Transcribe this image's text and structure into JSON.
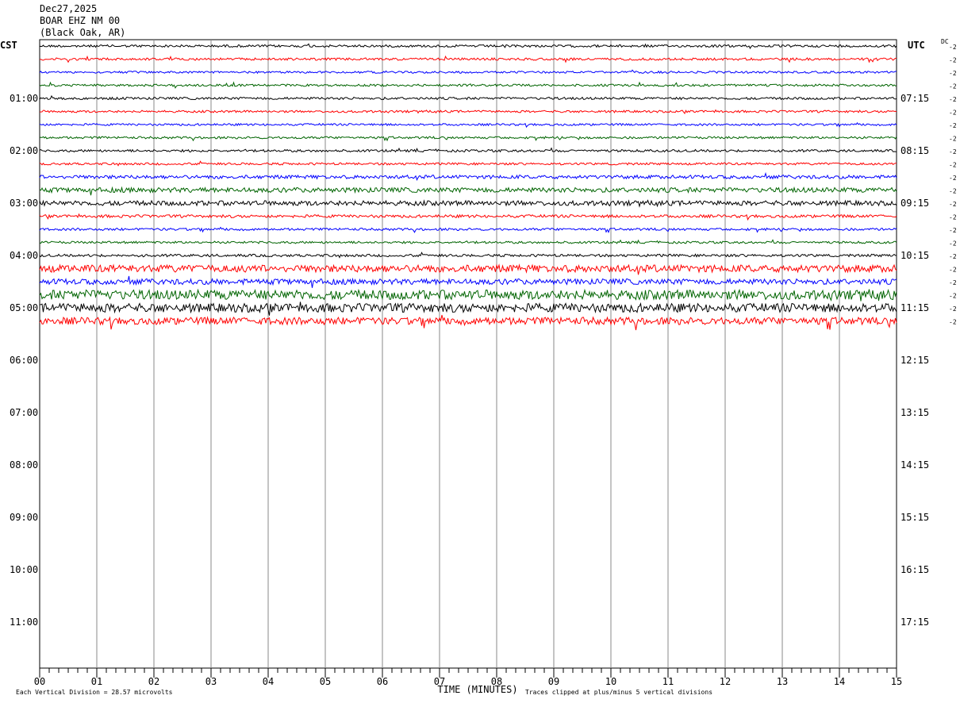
{
  "header": {
    "date": "Dec27,2025",
    "station": "BOAR EHZ NM 00",
    "location": "(Black Oak, AR)"
  },
  "left_zone": "CST",
  "right_zone": "UTC",
  "dc_label": "DC",
  "chart_data": {
    "type": "line",
    "title": "BOAR EHZ NM 00 (Black Oak, AR)",
    "xlabel": "TIME (MINUTES)",
    "x_ticks": [
      "00",
      "01",
      "02",
      "03",
      "04",
      "05",
      "06",
      "07",
      "08",
      "09",
      "10",
      "11",
      "12",
      "13",
      "14",
      "15"
    ],
    "xlim": [
      0,
      15
    ],
    "left_hour_labels": [
      "01:00",
      "02:00",
      "03:00",
      "04:00",
      "05:00",
      "06:00",
      "07:00",
      "08:00",
      "09:00",
      "10:00",
      "11:00"
    ],
    "right_hour_labels": [
      "07:15",
      "08:15",
      "09:15",
      "10:15",
      "11:15",
      "12:15",
      "13:15",
      "14:15",
      "15:15",
      "16:15",
      "17:15"
    ],
    "trace_colors": [
      "#000000",
      "#ff0000",
      "#0000ff",
      "#006400"
    ],
    "trace_count": 22,
    "dc_offsets": [
      "-2",
      "-2",
      "-2",
      "-2",
      "-2",
      "-2",
      "-2",
      "-2",
      "-2",
      "-2",
      "-2",
      "-2",
      "-2",
      "-2",
      "-2",
      "-2",
      "-2",
      "-2",
      "-2",
      "-2",
      "-2",
      "-2"
    ],
    "trace_amplitude": [
      1.5,
      1.5,
      1.3,
      1.4,
      1.5,
      1.4,
      1.3,
      1.4,
      1.5,
      1.4,
      2.2,
      3.0,
      3.0,
      1.8,
      1.5,
      1.4,
      1.6,
      4.5,
      3.5,
      6.0,
      5.5,
      4.5
    ],
    "footer_left": "Each Vertical Division =   28.57 microvolts",
    "footer_right": "Traces clipped at plus/minus 5 vertical divisions"
  }
}
